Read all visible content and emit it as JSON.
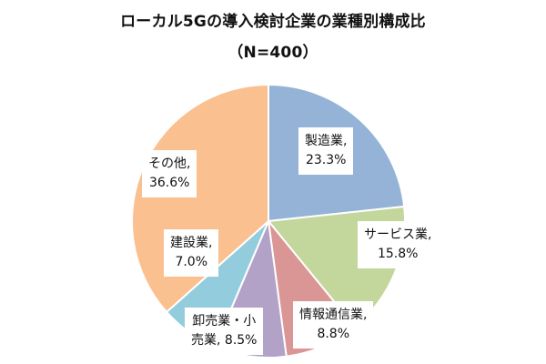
{
  "chart_data": {
    "type": "pie",
    "title": "ローカル5Gの導入検討企業の業種別構成比",
    "subtitle": "（N=400）",
    "slices": [
      {
        "label": "製造業,",
        "value": 23.3,
        "value_text": "23.3%",
        "color": "#95b3d7"
      },
      {
        "label": "サービス業,",
        "value": 15.8,
        "value_text": "15.8%",
        "color": "#c3d69b"
      },
      {
        "label": "情報通信業,",
        "value": 8.8,
        "value_text": "8.8%",
        "color": "#d99694"
      },
      {
        "label": "卸売業・小",
        "label2": "売業,",
        "value": 8.5,
        "value_text": "8.5%",
        "color": "#b3a2c7"
      },
      {
        "label": "建設業,",
        "value": 7.0,
        "value_text": "7.0%",
        "color": "#93cddd"
      },
      {
        "label": "その他,",
        "value": 36.6,
        "value_text": "36.6%",
        "color": "#fac090"
      }
    ],
    "start_angle": "12 o'clock",
    "direction": "clockwise",
    "legend": "none"
  }
}
